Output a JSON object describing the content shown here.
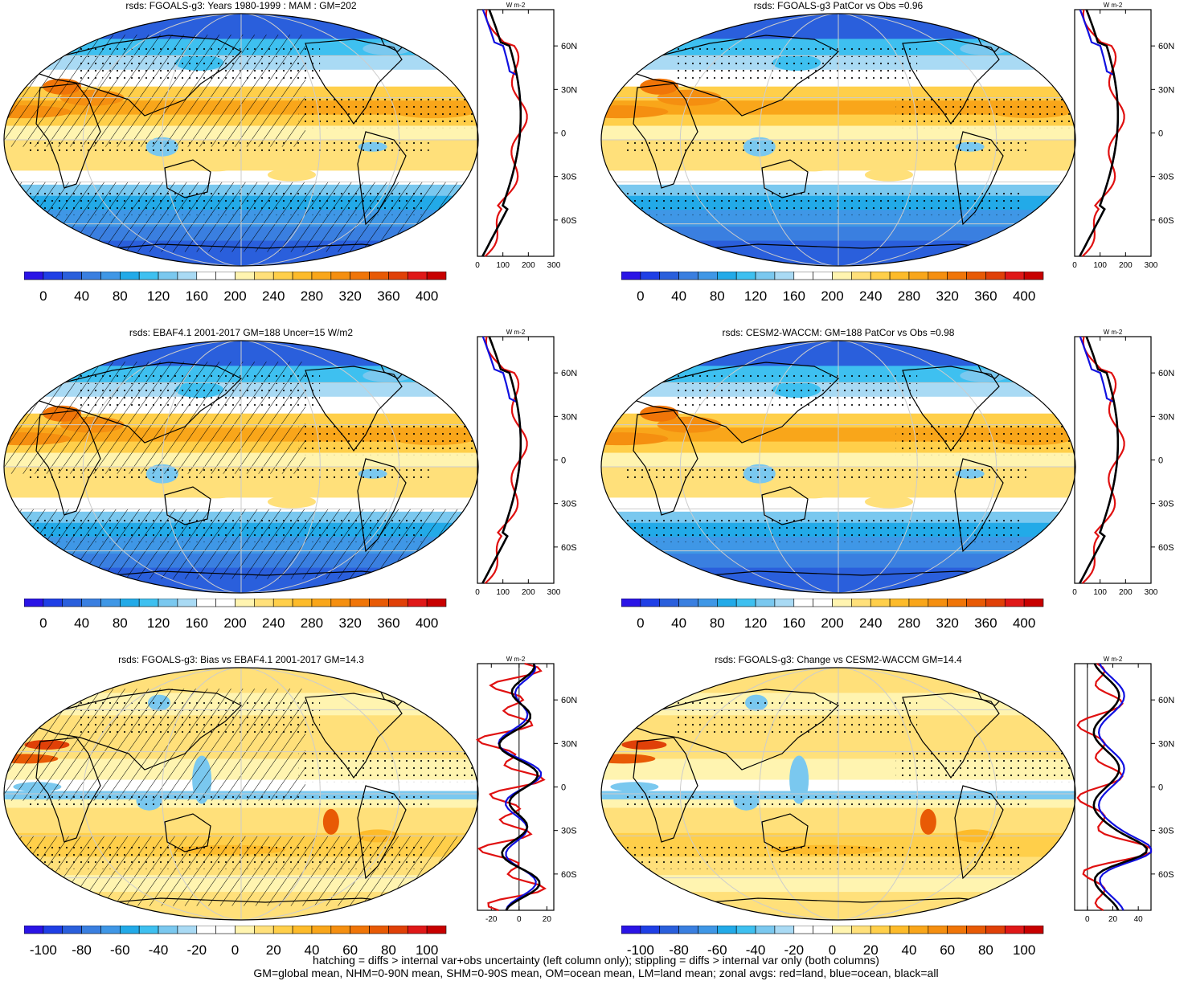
{
  "colors": {
    "scale": [
      "#2a14e6",
      "#1f3fe6",
      "#2a5fdc",
      "#3a7fe0",
      "#3f97e6",
      "#22aae8",
      "#3ec0f0",
      "#7ac8ef",
      "#a9daf4",
      "#ffffff",
      "#ffffff",
      "#fff4b0",
      "#ffe07a",
      "#ffcf4a",
      "#fdbb2a",
      "#f9a61a",
      "#f58f10",
      "#f07508",
      "#e85a05",
      "#e04008",
      "#e01818",
      "#c80000"
    ],
    "land_zonal": "#e01010",
    "ocean_zonal": "#1010e0",
    "all_zonal": "#000000"
  },
  "panels": [
    {
      "title": "rsds: FGOALS-g3: Years 1980-1999 : MAM : GM=202",
      "cbar_labels": [
        "0",
        "40",
        "80",
        "120",
        "160",
        "200",
        "240",
        "280",
        "320",
        "360",
        "400"
      ],
      "zonal": {
        "units": "W m-2",
        "xticks": [
          "0",
          "100",
          "200",
          "300"
        ],
        "xlim": [
          0,
          300
        ],
        "yticks": [
          "60N",
          "30N",
          "0",
          "30S",
          "60S"
        ],
        "type": "mean"
      },
      "hatch": true
    },
    {
      "title": "rsds: FGOALS-g3 PatCor vs Obs =0.96",
      "cbar_labels": [
        "0",
        "40",
        "80",
        "120",
        "160",
        "200",
        "240",
        "280",
        "320",
        "360",
        "400"
      ],
      "zonal": {
        "units": "W m-2",
        "xticks": [
          "0",
          "100",
          "200",
          "300"
        ],
        "xlim": [
          0,
          300
        ],
        "yticks": [
          "60N",
          "30N",
          "0",
          "30S",
          "60S"
        ],
        "type": "mean"
      },
      "hatch": false
    },
    {
      "title": "rsds: EBAF4.1 2001-2017 GM=188 Uncer=15 W/m2",
      "cbar_labels": [
        "0",
        "40",
        "80",
        "120",
        "160",
        "200",
        "240",
        "280",
        "320",
        "360",
        "400"
      ],
      "zonal": {
        "units": "W m-2",
        "xticks": [
          "0",
          "100",
          "200",
          "300"
        ],
        "xlim": [
          0,
          300
        ],
        "yticks": [
          "60N",
          "30N",
          "0",
          "30S",
          "60S"
        ],
        "type": "mean"
      },
      "hatch": true
    },
    {
      "title": "rsds: CESM2-WACCM: GM=188 PatCor vs Obs =0.98",
      "cbar_labels": [
        "0",
        "40",
        "80",
        "120",
        "160",
        "200",
        "240",
        "280",
        "320",
        "360",
        "400"
      ],
      "zonal": {
        "units": "W m-2",
        "xticks": [
          "0",
          "100",
          "200",
          "300"
        ],
        "xlim": [
          0,
          300
        ],
        "yticks": [
          "60N",
          "30N",
          "0",
          "30S",
          "60S"
        ],
        "type": "mean"
      },
      "hatch": false
    },
    {
      "title": "rsds: FGOALS-g3: Bias vs EBAF4.1 2001-2017 GM=14.3",
      "cbar_labels": [
        "-100",
        "-80",
        "-60",
        "-40",
        "-20",
        "0",
        "20",
        "40",
        "60",
        "80",
        "100"
      ],
      "zonal": {
        "units": "W m-2",
        "xticks": [
          "-20",
          "0",
          "20"
        ],
        "xlim": [
          -30,
          25
        ],
        "yticks": [
          "60N",
          "30N",
          "0",
          "30S",
          "60S"
        ],
        "type": "bias"
      },
      "hatch": true
    },
    {
      "title": "rsds: FGOALS-g3: Change vs CESM2-WACCM GM=14.4",
      "cbar_labels": [
        "-100",
        "-80",
        "-60",
        "-40",
        "-20",
        "0",
        "20",
        "40",
        "60",
        "80",
        "100"
      ],
      "zonal": {
        "units": "W m-2",
        "xticks": [
          "0",
          "20",
          "40"
        ],
        "xlim": [
          -10,
          50
        ],
        "yticks": [
          "60N",
          "30N",
          "0",
          "30S",
          "60S"
        ],
        "type": "change"
      },
      "hatch": false
    }
  ],
  "footer": {
    "line1": "hatching = diffs > internal var+obs uncertainty (left column only); stippling = diffs > internal var only (both columns)",
    "line2": "GM=global mean, NHM=0-90N mean, SHM=0-90S mean, OM=ocean mean, LM=land mean; zonal avgs: red=land, blue=ocean, black=all"
  }
}
